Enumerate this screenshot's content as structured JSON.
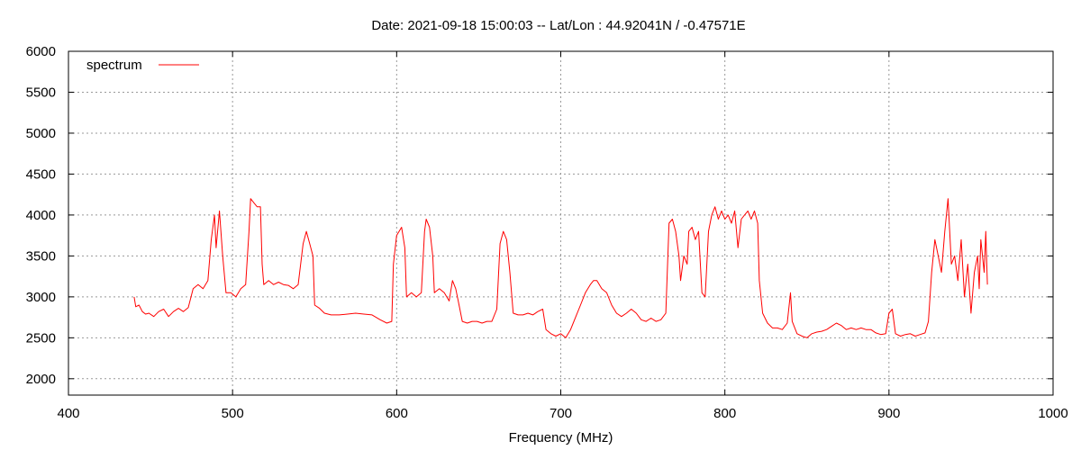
{
  "chart_data": {
    "type": "line",
    "title": "Date: 2021-09-18 15:00:03  --  Lat/Lon : 44.92041N / -0.47571E",
    "xlabel": "Frequency (MHz)",
    "ylabel": "",
    "xlim": [
      400,
      1000
    ],
    "ylim": [
      1800,
      6000
    ],
    "xticks": [
      400,
      500,
      600,
      700,
      800,
      900,
      1000
    ],
    "yticks": [
      2000,
      2500,
      3000,
      3500,
      4000,
      4500,
      5000,
      5500,
      6000
    ],
    "grid": true,
    "legend": {
      "position": "top-left"
    },
    "series": [
      {
        "name": "spectrum",
        "color": "#ff0000",
        "points": [
          [
            440,
            3000
          ],
          [
            441,
            2880
          ],
          [
            443,
            2900
          ],
          [
            445,
            2820
          ],
          [
            447,
            2790
          ],
          [
            449,
            2800
          ],
          [
            452,
            2760
          ],
          [
            455,
            2820
          ],
          [
            458,
            2850
          ],
          [
            461,
            2760
          ],
          [
            464,
            2820
          ],
          [
            467,
            2860
          ],
          [
            470,
            2820
          ],
          [
            473,
            2870
          ],
          [
            476,
            3100
          ],
          [
            479,
            3150
          ],
          [
            482,
            3100
          ],
          [
            485,
            3200
          ],
          [
            487,
            3700
          ],
          [
            489,
            4000
          ],
          [
            490,
            3600
          ],
          [
            492,
            4050
          ],
          [
            494,
            3500
          ],
          [
            496,
            3050
          ],
          [
            499,
            3050
          ],
          [
            502,
            3000
          ],
          [
            505,
            3100
          ],
          [
            508,
            3150
          ],
          [
            510,
            3800
          ],
          [
            511,
            4200
          ],
          [
            513,
            4150
          ],
          [
            515,
            4100
          ],
          [
            517,
            4100
          ],
          [
            518,
            3400
          ],
          [
            519,
            3150
          ],
          [
            522,
            3200
          ],
          [
            525,
            3150
          ],
          [
            528,
            3180
          ],
          [
            531,
            3150
          ],
          [
            534,
            3140
          ],
          [
            537,
            3100
          ],
          [
            540,
            3150
          ],
          [
            543,
            3650
          ],
          [
            545,
            3800
          ],
          [
            547,
            3650
          ],
          [
            549,
            3500
          ],
          [
            550,
            2900
          ],
          [
            553,
            2860
          ],
          [
            556,
            2800
          ],
          [
            560,
            2780
          ],
          [
            565,
            2780
          ],
          [
            570,
            2790
          ],
          [
            575,
            2800
          ],
          [
            580,
            2790
          ],
          [
            585,
            2780
          ],
          [
            590,
            2720
          ],
          [
            594,
            2680
          ],
          [
            597,
            2700
          ],
          [
            598,
            3400
          ],
          [
            600,
            3750
          ],
          [
            603,
            3850
          ],
          [
            605,
            3600
          ],
          [
            606,
            3000
          ],
          [
            609,
            3050
          ],
          [
            612,
            3000
          ],
          [
            615,
            3050
          ],
          [
            617,
            3800
          ],
          [
            618,
            3950
          ],
          [
            620,
            3850
          ],
          [
            622,
            3500
          ],
          [
            623,
            3050
          ],
          [
            626,
            3100
          ],
          [
            629,
            3050
          ],
          [
            632,
            2950
          ],
          [
            634,
            3200
          ],
          [
            636,
            3100
          ],
          [
            638,
            2900
          ],
          [
            640,
            2700
          ],
          [
            643,
            2680
          ],
          [
            646,
            2700
          ],
          [
            649,
            2700
          ],
          [
            652,
            2680
          ],
          [
            655,
            2700
          ],
          [
            658,
            2700
          ],
          [
            661,
            2850
          ],
          [
            663,
            3650
          ],
          [
            665,
            3800
          ],
          [
            667,
            3700
          ],
          [
            669,
            3300
          ],
          [
            671,
            2800
          ],
          [
            674,
            2780
          ],
          [
            677,
            2780
          ],
          [
            680,
            2800
          ],
          [
            683,
            2780
          ],
          [
            686,
            2820
          ],
          [
            689,
            2850
          ],
          [
            691,
            2600
          ],
          [
            694,
            2550
          ],
          [
            697,
            2520
          ],
          [
            700,
            2550
          ],
          [
            703,
            2500
          ],
          [
            706,
            2600
          ],
          [
            709,
            2750
          ],
          [
            712,
            2900
          ],
          [
            715,
            3050
          ],
          [
            718,
            3150
          ],
          [
            720,
            3200
          ],
          [
            722,
            3200
          ],
          [
            725,
            3100
          ],
          [
            728,
            3050
          ],
          [
            731,
            2900
          ],
          [
            734,
            2800
          ],
          [
            737,
            2760
          ],
          [
            740,
            2800
          ],
          [
            743,
            2850
          ],
          [
            746,
            2800
          ],
          [
            749,
            2720
          ],
          [
            752,
            2700
          ],
          [
            755,
            2740
          ],
          [
            758,
            2700
          ],
          [
            761,
            2720
          ],
          [
            764,
            2800
          ],
          [
            766,
            3900
          ],
          [
            768,
            3950
          ],
          [
            770,
            3800
          ],
          [
            772,
            3500
          ],
          [
            773,
            3200
          ],
          [
            775,
            3500
          ],
          [
            777,
            3400
          ],
          [
            778,
            3800
          ],
          [
            780,
            3850
          ],
          [
            782,
            3700
          ],
          [
            784,
            3800
          ],
          [
            786,
            3050
          ],
          [
            788,
            3000
          ],
          [
            790,
            3800
          ],
          [
            792,
            4000
          ],
          [
            794,
            4100
          ],
          [
            796,
            3950
          ],
          [
            798,
            4050
          ],
          [
            800,
            3950
          ],
          [
            802,
            4000
          ],
          [
            804,
            3900
          ],
          [
            806,
            4050
          ],
          [
            808,
            3600
          ],
          [
            810,
            3950
          ],
          [
            812,
            4000
          ],
          [
            814,
            4050
          ],
          [
            816,
            3950
          ],
          [
            818,
            4050
          ],
          [
            820,
            3900
          ],
          [
            821,
            3200
          ],
          [
            823,
            2800
          ],
          [
            826,
            2680
          ],
          [
            829,
            2620
          ],
          [
            832,
            2620
          ],
          [
            835,
            2600
          ],
          [
            838,
            2680
          ],
          [
            840,
            3050
          ],
          [
            841,
            2700
          ],
          [
            844,
            2550
          ],
          [
            847,
            2520
          ],
          [
            850,
            2500
          ],
          [
            853,
            2550
          ],
          [
            856,
            2570
          ],
          [
            859,
            2580
          ],
          [
            862,
            2600
          ],
          [
            865,
            2640
          ],
          [
            868,
            2680
          ],
          [
            871,
            2650
          ],
          [
            874,
            2600
          ],
          [
            877,
            2620
          ],
          [
            880,
            2600
          ],
          [
            883,
            2620
          ],
          [
            886,
            2600
          ],
          [
            889,
            2600
          ],
          [
            892,
            2560
          ],
          [
            895,
            2540
          ],
          [
            898,
            2550
          ],
          [
            900,
            2800
          ],
          [
            902,
            2850
          ],
          [
            904,
            2550
          ],
          [
            907,
            2520
          ],
          [
            910,
            2540
          ],
          [
            913,
            2550
          ],
          [
            916,
            2520
          ],
          [
            919,
            2540
          ],
          [
            922,
            2560
          ],
          [
            924,
            2700
          ],
          [
            926,
            3300
          ],
          [
            928,
            3700
          ],
          [
            930,
            3500
          ],
          [
            932,
            3300
          ],
          [
            934,
            3800
          ],
          [
            936,
            4200
          ],
          [
            938,
            3400
          ],
          [
            940,
            3500
          ],
          [
            942,
            3200
          ],
          [
            944,
            3700
          ],
          [
            946,
            3000
          ],
          [
            948,
            3400
          ],
          [
            950,
            2800
          ],
          [
            952,
            3300
          ],
          [
            954,
            3500
          ],
          [
            955,
            3100
          ],
          [
            956,
            3700
          ],
          [
            958,
            3300
          ],
          [
            959,
            3800
          ],
          [
            960,
            3150
          ]
        ]
      }
    ]
  }
}
